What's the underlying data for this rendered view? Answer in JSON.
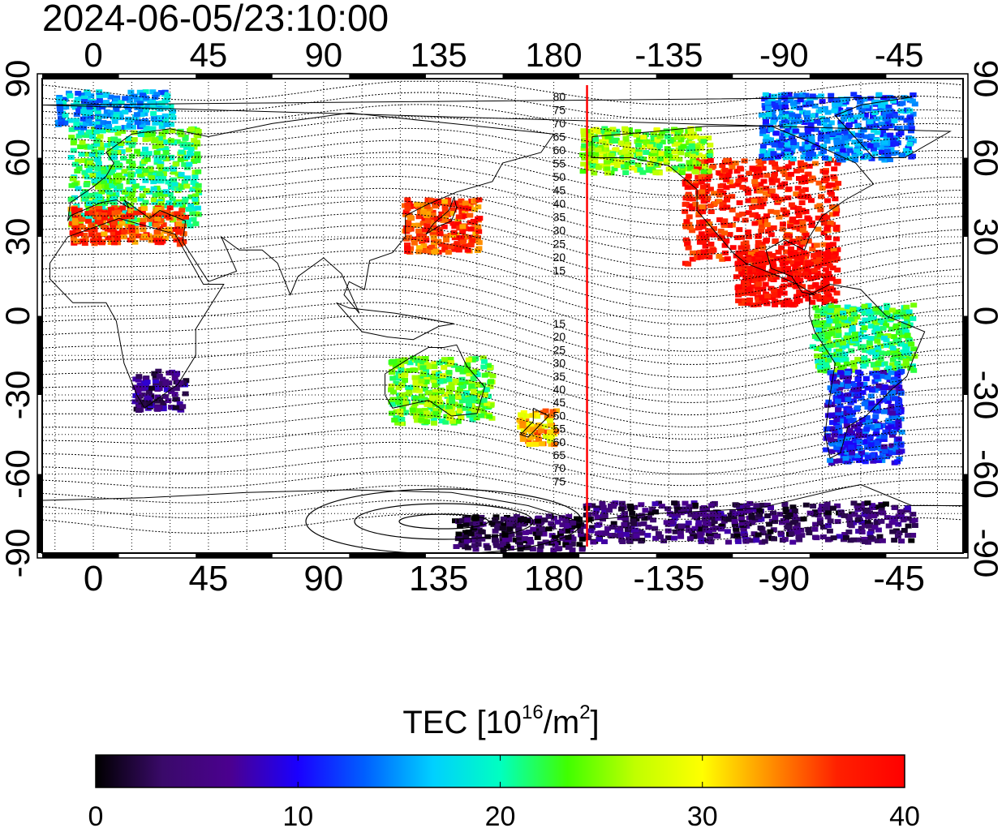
{
  "title": "2024-06-05/23:10:00",
  "map": {
    "top_lon_ticks": [
      "0",
      "45",
      "90",
      "135",
      "180",
      "-135",
      "-90",
      "-45"
    ],
    "bottom_lon_ticks": [
      "0",
      "45",
      "90",
      "135",
      "180",
      "-135",
      "-90",
      "-45"
    ],
    "left_lat_ticks": [
      "90",
      "60",
      "30",
      "0",
      "-30",
      "-60",
      "-90"
    ],
    "right_lat_ticks": [
      "90",
      "60",
      "30",
      "0",
      "-30",
      "-60",
      "-90"
    ],
    "lon_values": [
      0,
      45,
      90,
      135,
      180,
      225,
      270,
      315
    ],
    "lat_values": [
      90,
      60,
      30,
      0,
      -30,
      -60,
      -90
    ],
    "lon_range": [
      -20,
      340
    ],
    "lat_range": [
      -90,
      90
    ],
    "terminator_lon": 193,
    "terminator_color": "#ff0000",
    "magnetic_lat_labels_north": [
      "80",
      "75",
      "70",
      "65",
      "60",
      "55",
      "50",
      "45",
      "40",
      "35",
      "30",
      "25",
      "20",
      "15"
    ],
    "magnetic_lat_labels_south": [
      "15",
      "20",
      "25",
      "30",
      "35",
      "40",
      "45",
      "50",
      "55",
      "60",
      "65",
      "70",
      "75"
    ]
  },
  "colorbar": {
    "label_text": "TEC  [10",
    "label_exp": "16",
    "label_unit": "/m",
    "label_exp2": "2",
    "label_close": "]",
    "ticks": [
      "0",
      "10",
      "20",
      "30",
      "40"
    ],
    "tick_values": [
      0,
      10,
      20,
      30,
      40
    ],
    "range": [
      0,
      40
    ],
    "colors": [
      "#000000",
      "#3a0a6a",
      "#4b0090",
      "#1a00ff",
      "#0060ff",
      "#00d0ff",
      "#00ffc0",
      "#40ff00",
      "#c0ff00",
      "#ffff00",
      "#ff9000",
      "#ff2000",
      "#ff0000"
    ]
  },
  "tec_regions": [
    {
      "name": "north-america",
      "lon": [
        -130,
        -70
      ],
      "lat": [
        20,
        60
      ],
      "tec": 38
    },
    {
      "name": "canada-arctic",
      "lon": [
        -100,
        -40
      ],
      "lat": [
        60,
        85
      ],
      "tec": 14
    },
    {
      "name": "alaska",
      "lon": [
        -170,
        -120
      ],
      "lat": [
        55,
        72
      ],
      "tec": 25
    },
    {
      "name": "central-america",
      "lon": [
        -110,
        -70
      ],
      "lat": [
        5,
        25
      ],
      "tec": 40
    },
    {
      "name": "south-america-north",
      "lon": [
        -80,
        -40
      ],
      "lat": [
        -20,
        5
      ],
      "tec": 22
    },
    {
      "name": "south-america-south",
      "lon": [
        -75,
        -45
      ],
      "lat": [
        -55,
        -20
      ],
      "tec": 11
    },
    {
      "name": "europe",
      "lon": [
        -10,
        40
      ],
      "lat": [
        35,
        72
      ],
      "tec": 22
    },
    {
      "name": "arctic-europe",
      "lon": [
        -15,
        30
      ],
      "lat": [
        72,
        86
      ],
      "tec": 16
    },
    {
      "name": "mediterranean",
      "lon": [
        -10,
        35
      ],
      "lat": [
        28,
        42
      ],
      "tec": 36
    },
    {
      "name": "east-asia",
      "lon": [
        120,
        150
      ],
      "lat": [
        25,
        45
      ],
      "tec": 36
    },
    {
      "name": "south-africa",
      "lon": [
        15,
        35
      ],
      "lat": [
        -35,
        -20
      ],
      "tec": 5
    },
    {
      "name": "australia",
      "lon": [
        115,
        155
      ],
      "lat": [
        -40,
        -15
      ],
      "tec": 24
    },
    {
      "name": "new-zealand",
      "lon": [
        165,
        180
      ],
      "lat": [
        -48,
        -35
      ],
      "tec": 32
    },
    {
      "name": "antarctica-east",
      "lon": [
        -170,
        -40
      ],
      "lat": [
        -85,
        -70
      ],
      "tec": 4
    },
    {
      "name": "antarctica-pacific",
      "lon": [
        140,
        190
      ],
      "lat": [
        -88,
        -75
      ],
      "tec": 3
    }
  ]
}
